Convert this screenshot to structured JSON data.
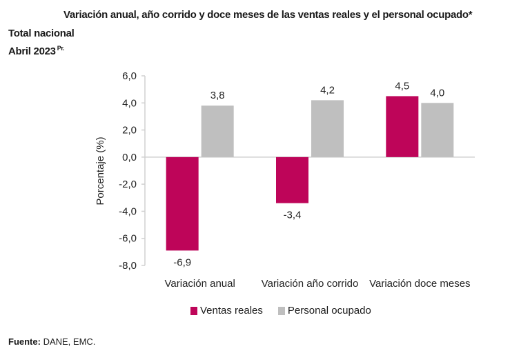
{
  "header": {
    "title": "Variación anual, año corrido y doce meses de las ventas reales y el personal ocupado*",
    "subtitle_line1": "Total nacional",
    "subtitle_line2": "Abril 2023",
    "subtitle_sup": "Pr."
  },
  "footer": {
    "source_label": "Fuente:",
    "source_text": " DANE, EMC."
  },
  "colors": {
    "ventas_reales": "#BE0559",
    "personal_ocupado": "#BFBFBF",
    "axis": "#D0D0D0"
  },
  "chart_data": {
    "type": "bar",
    "title": "Variación anual, año corrido y doce meses de las ventas reales y el personal ocupado*",
    "xlabel": "",
    "ylabel": "Porcentaje (%)",
    "ylim": [
      -8,
      6
    ],
    "yticks": [
      6,
      4,
      2,
      0,
      -2,
      -4,
      -6,
      -8
    ],
    "ytick_labels": [
      "6,0",
      "4,0",
      "2,0",
      "0,0",
      "-2,0",
      "-4,0",
      "-6,0",
      "-8,0"
    ],
    "categories": [
      "Variación anual",
      "Variación año corrido",
      "Variación doce meses"
    ],
    "series": [
      {
        "name": "Ventas reales",
        "values": [
          -6.9,
          -3.4,
          4.5
        ],
        "labels": [
          "-6,9",
          "-3,4",
          "4,5"
        ]
      },
      {
        "name": "Personal ocupado",
        "values": [
          3.8,
          4.2,
          4.0
        ],
        "labels": [
          "3,8",
          "4,2",
          "4,0"
        ]
      }
    ],
    "grid": false,
    "legend": "bottom"
  }
}
